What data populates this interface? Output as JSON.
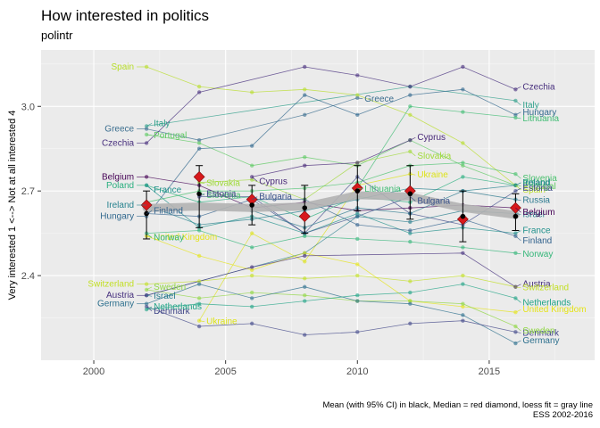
{
  "chart_data": {
    "type": "line",
    "title": "How interested in politics",
    "subtitle": "polintr",
    "ylabel": "Very interested 1 <--> Not at all interested 4",
    "xlabel": "",
    "caption_line1": "Mean (with 95% CI) in black, Median = red diamond, loess fit = gray line",
    "caption_line2": "ESS 2002-2016",
    "xlim": [
      1998,
      2019
    ],
    "ylim": [
      2.1,
      3.2
    ],
    "x_ticks": [
      2000,
      2005,
      2010,
      2015
    ],
    "x_tick_labels": [
      "2000",
      "2005",
      "2010",
      "2015"
    ],
    "y_ticks": [
      2.4,
      2.7,
      3.0
    ],
    "y_tick_labels": [
      "2.4",
      "2.7",
      "3.0"
    ],
    "grid": true,
    "legend": "none",
    "colors": {
      "panel": "#ebebeb",
      "grid": "#ffffff",
      "mean": "#000000",
      "median": "#d7191c",
      "loess": "#b3b3b3"
    },
    "series": [
      {
        "name": "Spain",
        "color": "#b8de29",
        "x": [
          2002,
          2004,
          2006,
          2008,
          2010,
          2012,
          2014,
          2016
        ],
        "y": [
          3.14,
          3.07,
          3.05,
          3.06,
          3.04,
          2.97,
          2.87,
          2.72
        ]
      },
      {
        "name": "Italy",
        "color": "#2e9f8a",
        "x": [
          2002,
          2012,
          2016
        ],
        "y": [
          2.93,
          3.07,
          3.02
        ]
      },
      {
        "name": "Greece",
        "color": "#3b6e8f",
        "x": [
          2002,
          2004,
          2008,
          2010
        ],
        "y": [
          2.92,
          2.88,
          2.97,
          3.03
        ]
      },
      {
        "name": "Czechia",
        "color": "#472f7d",
        "x": [
          2002,
          2004,
          2008,
          2010,
          2012,
          2014,
          2016
        ],
        "y": [
          2.87,
          3.05,
          3.14,
          3.11,
          3.07,
          3.14,
          3.06
        ]
      },
      {
        "name": "Portugal",
        "color": "#5ec962",
        "x": [
          2002,
          2004,
          2006,
          2008,
          2010,
          2012,
          2014,
          2016
        ],
        "y": [
          2.9,
          2.87,
          2.79,
          2.82,
          2.79,
          2.88,
          2.79,
          2.72
        ]
      },
      {
        "name": "Hungary",
        "color": "#31688e",
        "x": [
          2002,
          2004,
          2006,
          2008,
          2010,
          2012,
          2014,
          2016
        ],
        "y": [
          2.61,
          2.85,
          2.86,
          3.04,
          2.97,
          3.04,
          3.06,
          2.97
        ]
      },
      {
        "name": "Lithuania",
        "color": "#3fbc73",
        "x": [
          2010,
          2012,
          2014,
          2016
        ],
        "y": [
          2.71,
          3.0,
          2.98,
          2.96
        ]
      },
      {
        "name": "Slovakia",
        "color": "#a0da39",
        "x": [
          2004,
          2006,
          2008,
          2010,
          2012
        ],
        "y": [
          2.73,
          2.74,
          2.67,
          2.8,
          2.84
        ]
      },
      {
        "name": "Cyprus",
        "color": "#482878",
        "x": [
          2006,
          2008,
          2010,
          2012
        ],
        "y": [
          2.75,
          2.79,
          2.8,
          2.88
        ]
      },
      {
        "name": "Ukraine",
        "color": "#dde318",
        "x": [
          2004,
          2006,
          2008,
          2010,
          2012
        ],
        "y": [
          2.24,
          2.55,
          2.45,
          2.72,
          2.76
        ]
      },
      {
        "name": "Slovenia",
        "color": "#4ac16d",
        "x": [
          2002,
          2004,
          2006,
          2008,
          2010,
          2012,
          2014,
          2016
        ],
        "y": [
          2.66,
          2.7,
          2.7,
          2.71,
          2.73,
          2.79,
          2.8,
          2.76
        ]
      },
      {
        "name": "Belgium",
        "color": "#440154",
        "x": [
          2002,
          2004,
          2006,
          2008,
          2010,
          2012,
          2014,
          2016
        ],
        "y": [
          2.75,
          2.72,
          2.64,
          2.66,
          2.63,
          2.64,
          2.65,
          2.64
        ]
      },
      {
        "name": "Estonia",
        "color": "#3e4a89",
        "x": [
          2004,
          2006,
          2008,
          2010,
          2012,
          2014,
          2016
        ],
        "y": [
          2.68,
          2.68,
          2.55,
          2.75,
          2.62,
          2.58,
          2.7
        ]
      },
      {
        "name": "Poland",
        "color": "#29af7f",
        "x": [
          2002,
          2004,
          2006,
          2008,
          2010,
          2012,
          2014,
          2016
        ],
        "y": [
          2.72,
          2.66,
          2.68,
          2.6,
          2.68,
          2.66,
          2.75,
          2.72
        ]
      },
      {
        "name": "France",
        "color": "#21918c",
        "x": [
          2002,
          2004,
          2006,
          2008,
          2010,
          2012,
          2014,
          2016
        ],
        "y": [
          2.72,
          2.57,
          2.61,
          2.55,
          2.62,
          2.55,
          2.57,
          2.55
        ]
      },
      {
        "name": "Ireland",
        "color": "#26828e",
        "x": [
          2002,
          2004,
          2006,
          2008,
          2010,
          2012,
          2014,
          2016
        ],
        "y": [
          2.65,
          2.58,
          2.6,
          2.63,
          2.67,
          2.71,
          2.7,
          2.72
        ]
      },
      {
        "name": "Bulgaria",
        "color": "#3b528b",
        "x": [
          2006,
          2008,
          2010,
          2012
        ],
        "y": [
          2.67,
          2.55,
          2.61,
          2.68
        ]
      },
      {
        "name": "Israel",
        "color": "#287d8e",
        "x": [
          2002,
          2008,
          2010,
          2012,
          2014,
          2016
        ],
        "y": [
          2.33,
          2.48,
          2.61,
          2.59,
          2.63,
          2.62
        ]
      },
      {
        "name": "Russia",
        "color": "#2a788e",
        "x": [
          2006,
          2008,
          2010,
          2012,
          2014,
          2016
        ],
        "y": [
          2.63,
          2.57,
          2.64,
          2.62,
          2.7,
          2.67
        ]
      },
      {
        "name": "Finland",
        "color": "#33638d",
        "x": [
          2002,
          2004,
          2006,
          2008,
          2010,
          2012,
          2014,
          2016
        ],
        "y": [
          2.62,
          2.61,
          2.67,
          2.67,
          2.58,
          2.56,
          2.6,
          2.54
        ]
      },
      {
        "name": "United Kingdom",
        "color": "#e5e419",
        "x": [
          2002,
          2004,
          2006,
          2008,
          2010,
          2012,
          2014,
          2016
        ],
        "y": [
          2.54,
          2.47,
          2.42,
          2.48,
          2.44,
          2.31,
          2.29,
          2.27
        ]
      },
      {
        "name": "Norway",
        "color": "#34b679",
        "x": [
          2002,
          2004,
          2006,
          2008,
          2010,
          2012,
          2014,
          2016
        ],
        "y": [
          2.55,
          2.56,
          2.5,
          2.54,
          2.53,
          2.52,
          2.5,
          2.48
        ]
      },
      {
        "name": "Switzerland",
        "color": "#c2df23",
        "x": [
          2002,
          2004,
          2006,
          2008,
          2010,
          2012,
          2014,
          2016
        ],
        "y": [
          2.37,
          2.38,
          2.4,
          2.39,
          2.4,
          2.38,
          2.4,
          2.36
        ]
      },
      {
        "name": "Sweden",
        "color": "#90d743",
        "x": [
          2002,
          2004,
          2006,
          2008,
          2010,
          2012,
          2014,
          2016
        ],
        "y": [
          2.35,
          2.32,
          2.34,
          2.33,
          2.31,
          2.31,
          2.3,
          2.22
        ]
      },
      {
        "name": "Austria",
        "color": "#46307e",
        "x": [
          2002,
          2006,
          2008,
          2014,
          2016
        ],
        "y": [
          2.33,
          2.43,
          2.47,
          2.48,
          2.36
        ]
      },
      {
        "name": "Germany",
        "color": "#2d708e",
        "x": [
          2002,
          2004,
          2006,
          2008,
          2010,
          2012,
          2014,
          2016
        ],
        "y": [
          2.3,
          2.37,
          2.32,
          2.36,
          2.31,
          2.3,
          2.26,
          2.16
        ]
      },
      {
        "name": "Denmark",
        "color": "#404688",
        "x": [
          2002,
          2004,
          2006,
          2008,
          2010,
          2012,
          2014,
          2016
        ],
        "y": [
          2.29,
          2.22,
          2.23,
          2.19,
          2.2,
          2.23,
          2.24,
          2.2
        ]
      },
      {
        "name": "Netherlands",
        "color": "#20a486",
        "x": [
          2002,
          2004,
          2006,
          2008,
          2010,
          2012,
          2014,
          2016
        ],
        "y": [
          2.28,
          2.3,
          2.29,
          2.31,
          2.33,
          2.34,
          2.37,
          2.32
        ]
      }
    ],
    "labels_left": [
      {
        "name": "Spain",
        "x": 2002,
        "y": 3.14
      },
      {
        "name": "Greece",
        "x": 2002,
        "y": 2.92
      },
      {
        "name": "Czechia",
        "x": 2002,
        "y": 2.87
      },
      {
        "name": "Belgium",
        "x": 2002,
        "y": 2.75
      },
      {
        "name": "Poland",
        "x": 2002,
        "y": 2.72
      },
      {
        "name": "Ireland",
        "x": 2002,
        "y": 2.65
      },
      {
        "name": "Hungary",
        "x": 2002,
        "y": 2.61
      },
      {
        "name": "Switzerland",
        "x": 2002,
        "y": 2.37
      },
      {
        "name": "Austria",
        "x": 2002,
        "y": 2.33
      },
      {
        "name": "Germany",
        "x": 2002,
        "y": 2.3
      }
    ],
    "labels_right_first": [
      {
        "name": "Italy",
        "x": 2002,
        "y": 2.93
      },
      {
        "name": "Portugal",
        "x": 2002,
        "y": 2.9
      },
      {
        "name": "France",
        "x": 2002,
        "y": 2.72
      },
      {
        "name": "Finland",
        "x": 2002,
        "y": 2.62
      },
      {
        "name": "United Kingdom",
        "x": 2002,
        "y": 2.54
      },
      {
        "name": "Norway",
        "x": 2002,
        "y": 2.55
      },
      {
        "name": "Sweden",
        "x": 2002,
        "y": 2.35
      },
      {
        "name": "Israel",
        "x": 2002,
        "y": 2.33
      },
      {
        "name": "Denmark",
        "x": 2002,
        "y": 2.29
      },
      {
        "name": "Netherlands",
        "x": 2002,
        "y": 2.28
      },
      {
        "name": "Slovakia",
        "x": 2004,
        "y": 2.73
      },
      {
        "name": "Slovenia",
        "x": 2004,
        "y": 2.7
      },
      {
        "name": "Estonia",
        "x": 2004,
        "y": 2.68
      },
      {
        "name": "Ukraine",
        "x": 2004,
        "y": 2.24
      },
      {
        "name": "Cyprus",
        "x": 2006,
        "y": 2.75
      },
      {
        "name": "Bulgaria",
        "x": 2006,
        "y": 2.67
      },
      {
        "name": "Lithuania",
        "x": 2010,
        "y": 2.71
      }
    ],
    "labels_right_last": [
      {
        "name": "Czechia",
        "x": 2016,
        "y": 3.06
      },
      {
        "name": "Greece",
        "x": 2010,
        "y": 3.03
      },
      {
        "name": "Italy",
        "x": 2016,
        "y": 3.02
      },
      {
        "name": "Hungary",
        "x": 2016,
        "y": 2.97
      },
      {
        "name": "Lithuania",
        "x": 2016,
        "y": 2.96
      },
      {
        "name": "Slovakia",
        "x": 2012,
        "y": 2.84
      },
      {
        "name": "Cyprus",
        "x": 2012,
        "y": 2.88
      },
      {
        "name": "Ukraine",
        "x": 2012,
        "y": 2.76
      },
      {
        "name": "Slovenia",
        "x": 2016,
        "y": 2.76
      },
      {
        "name": "Poland",
        "x": 2016,
        "y": 2.72
      },
      {
        "name": "Portugal",
        "x": 2016,
        "y": 2.72
      },
      {
        "name": "Spain",
        "x": 2016,
        "y": 2.72
      },
      {
        "name": "Ireland",
        "x": 2016,
        "y": 2.72
      },
      {
        "name": "Russia",
        "x": 2016,
        "y": 2.67
      },
      {
        "name": "Bulgaria",
        "x": 2012,
        "y": 2.68
      },
      {
        "name": "Estonia",
        "x": 2016,
        "y": 2.7
      },
      {
        "name": "Israel",
        "x": 2016,
        "y": 2.62
      },
      {
        "name": "Belgium",
        "x": 2016,
        "y": 2.64
      },
      {
        "name": "France",
        "x": 2016,
        "y": 2.55
      },
      {
        "name": "Norway",
        "x": 2016,
        "y": 2.48
      },
      {
        "name": "Finland",
        "x": 2016,
        "y": 2.54
      },
      {
        "name": "Austria",
        "x": 2016,
        "y": 2.36
      },
      {
        "name": "Switzerland",
        "x": 2016,
        "y": 2.36
      },
      {
        "name": "Netherlands",
        "x": 2016,
        "y": 2.32
      },
      {
        "name": "United Kingdom",
        "x": 2016,
        "y": 2.27
      },
      {
        "name": "Denmark",
        "x": 2016,
        "y": 2.2
      },
      {
        "name": "Sweden",
        "x": 2016,
        "y": 2.22
      },
      {
        "name": "Germany",
        "x": 2016,
        "y": 2.16
      }
    ],
    "summary": {
      "x": [
        2002,
        2004,
        2006,
        2008,
        2010,
        2012,
        2014,
        2016
      ],
      "mean": [
        2.62,
        2.69,
        2.65,
        2.64,
        2.7,
        2.69,
        2.61,
        2.61
      ],
      "ci_low": [
        2.53,
        2.57,
        2.58,
        2.55,
        2.63,
        2.6,
        2.52,
        2.56
      ],
      "ci_high": [
        2.7,
        2.79,
        2.72,
        2.72,
        2.79,
        2.79,
        2.7,
        2.69
      ],
      "median": [
        2.65,
        2.75,
        2.67,
        2.61,
        2.71,
        2.7,
        2.6,
        2.64
      ],
      "loess": [
        2.64,
        2.645,
        2.64,
        2.645,
        2.685,
        2.68,
        2.64,
        2.615
      ]
    }
  }
}
